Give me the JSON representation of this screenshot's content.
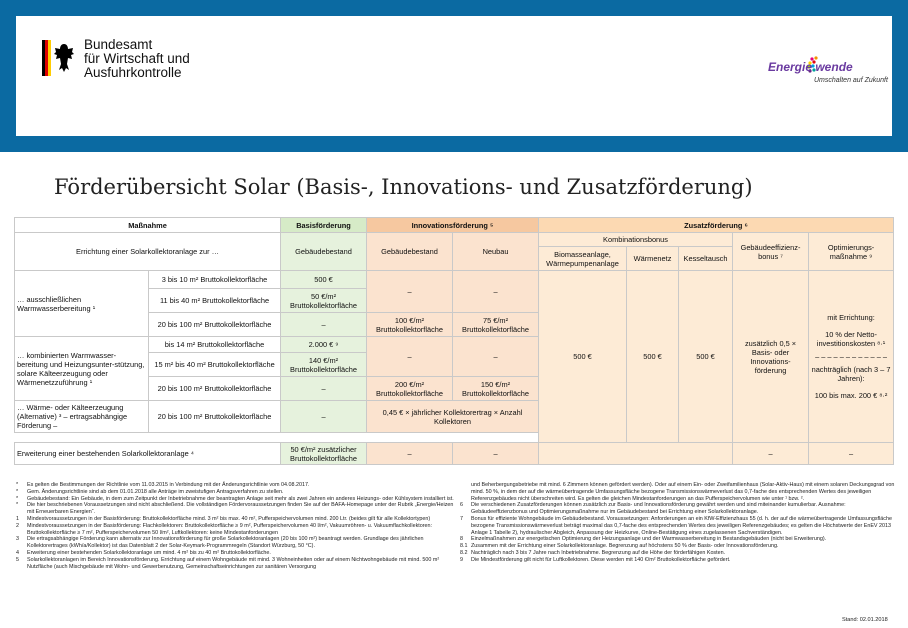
{
  "header": {
    "ministry": [
      "Bundesamt",
      "für Wirtschaft und",
      "Ausfuhrkontrolle"
    ],
    "logo_title": "Energie wende",
    "logo_sub": "Umschalten auf Zukunft"
  },
  "title": "Förderübersicht Solar (Basis-, Innovations- und Zusatzförderung)",
  "table": {
    "h_massnahme": "Maßnahme",
    "h_basis": "Basisförderung",
    "h_innov": "Innovationsförderung ⁵",
    "h_zusatz": "Zusatzförderung ⁶",
    "h_errichtung": "Errichtung einer Solarkollektoranlage zur …",
    "h_gebaeude_b": "Gebäudebestand",
    "h_gebaeude_i": "Gebäudebestand",
    "h_neubau": "Neubau",
    "h_kombi": "Kombinationsbonus",
    "h_effizienz": "Gebäudeeffizienz-bonus ⁷",
    "h_optim": "Optimierungs-maßnahme ⁹",
    "h_biomasse": "Biomasseanlage, Wärmepumpenanlage",
    "h_waermenetz": "Wärmenetz",
    "h_kessel": "Kesseltausch",
    "g1": "… ausschließlichen Warmwasserbereitung ¹",
    "g1r1": "3 bis 10 m² Bruttokollektorfläche",
    "g1r1b": "500 €",
    "g1r2": "11 bis 40 m² Bruttokollektorfläche",
    "g1r2b": "50 €/m² Bruttokollektorfläche",
    "g1r3": "20 bis 100 m² Bruttokollektorfläche",
    "g1r3b": "–",
    "g1i12": "–",
    "g1n12": "–",
    "g1r3i": "100 €/m² Bruttokollektorfläche",
    "g1r3n": "75 €/m² Bruttokollektorfläche",
    "g2": "… kombinierten Warmwasser-bereitung und Heizungsunter-stützung, solare Kälteerzeugung oder Wärmenetzzuführung ¹",
    "g2r1": "bis 14 m² Bruttokollektorfläche",
    "g2r1b": "2.000 € ⁹",
    "g2r2": "15 m² bis 40 m² Bruttokollektorfläche",
    "g2r2b": "140 €/m² Bruttokollektorfläche",
    "g2r3": "20 bis 100 m² Bruttokollektorfläche",
    "g2r3b": "–",
    "g2i12": "–",
    "g2n12": "–",
    "g2r3i": "200 €/m² Bruttokollektorfläche",
    "g2r3n": "150 €/m² Bruttokollektorfläche",
    "g3": "… Wärme- oder Kälteerzeugung (Alternative) ³ – ertragsabhängige Förderung –",
    "g3r1": "20 bis 100 m² Bruttokollektorfläche",
    "g3b": "–",
    "g3i": "0,45 € × jährlicher Kollektorertrag × Anzahl Kollektoren",
    "kombi1": "500 €",
    "kombi2": "500 €",
    "kombi3": "500 €",
    "effizienz": "zusätzlich 0,5 × Basis- oder Innovations-förderung",
    "optim_a": "mit Errichtung:",
    "optim_b": "10 % der Netto-investitionskosten ⁸·¹",
    "optim_sep": "– – – – – – – – – – – –",
    "optim_c": "nachträglich (nach 3 – 7 Jahren):",
    "optim_d": "100 bis max. 200 € ⁸·²",
    "erw": "Erweiterung einer bestehenden Solarkollektoranlage ⁴",
    "erw_b": "50 €/m² zusätzlicher Bruttokollektorfläche",
    "erw_i": "–",
    "erw_n": "–",
    "erw_e": "–",
    "erw_o": "–"
  },
  "notes_left": [
    {
      "k": "*",
      "t": "Es gelten die Bestimmungen der Richtlinie vom 11.03.2015 in Verbindung mit der Änderungsrichtlinie vom 04.08.2017."
    },
    {
      "k": "*",
      "t": "Gem. Änderungsrichtlinie sind ab dem 01.01.2018 alle Anträge im zweistufigen Antragsverfahren zu stellen."
    },
    {
      "k": "*",
      "t": "Gebäudebestand: Ein Gebäude, in dem zum Zeitpunkt der Inbetriebnahme der beantragten Anlage seit mehr als zwei Jahren ein anderes Heizungs- oder Kühlsystem installiert ist."
    },
    {
      "k": "*",
      "t": "Die hier beschriebenen Voraussetzungen sind nicht abschließend. Die vollständigen Fördervoraussetzungen finden Sie auf der BAFA-Homepage unter der Rubrik „Energie/Heizen mit Erneuerbaren Energien“."
    },
    {
      "k": "1",
      "t": "Mindestvoraussetzungen in der Basisförderung: Bruttokollektorfläche mind. 3 m² bis max. 40 m², Pufferspeichervolumen mind. 200 Ltr. (beides gilt für alle Kollektortypen)"
    },
    {
      "k": "2",
      "t": "Mindestvoraussetzungen in der Basisförderung: Flachkollektoren: Bruttokollektorfläche ≥ 9 m², Pufferspeichervolumen 40 l/m², Vakuumröhren- u. Vakuumflachkollektoren: Bruttokollektorfläche ≥ 7 m², Pufferspeichervolumen 50 l/m², Luftkollektoren: keine Mindestanforderungen"
    },
    {
      "k": "3",
      "t": "Die ertragsabhängige Förderung kann alternativ zur Innovationsförderung für große Solarkollektoranlagen (20 bis 100 m²) beantragt werden. Grundlage des jährlichen Kollektorertrages (kWh/a/Kollektor) ist das Datenblatt 2 der Solar-Keymark-Programmregeln (Standort Würzburg, 50 °C)."
    },
    {
      "k": "4",
      "t": "Erweiterung einer bestehenden Solarkollektoranlage um mind. 4 m² bis zu 40 m² Bruttokollektorfläche."
    },
    {
      "k": "5",
      "t": "Solarkollektoranlagen im Bereich Innovationsförderung. Errichtung auf einem Wohngebäude mit mind. 3 Wohneinheiten oder auf einem Nichtwohngebäude mit mind. 500 m² Nutzfläche (auch Mischgebäude mit Wohn- und Gewerbenutzung, Gemeinschaftseinrichtungen zur sanitären Versorgung"
    }
  ],
  "notes_right": [
    {
      "k": "",
      "t": "und Beherbergungsbetriebe mit mind. 6 Zimmern können gefördert werden). Oder auf einem Ein- oder Zweifamilienhaus (Solar-Aktiv-Haus) mit einem solaren Deckungsgrad von mind. 50 %, in dem der auf die wärmeübertragende Umfassungsfläche bezogene Transmissionswärmeverlust das 0,7-fache des entsprechenden Wertes des jeweiligen Referenzgebäudes nicht überschreiten wird. Es gelten die gleichen Mindestanforderungen an das Pufferspeichervolumen wie unter ¹ bzw. ²."
    },
    {
      "k": "6",
      "t": "Die verschiedenen Zusatzförderungen können zusätzlich zur Basis- und Innovationsförderung gewährt werden und sind miteinander kumulierbar. Ausnahme: Gebäudeeffizienzbonus und Optimierungsmaßnahme nur im Gebäudebestand bei Errichtung einer Solarkollektoranlage."
    },
    {
      "k": "7",
      "t": "Bonus für effiziente Wohngebäude im Gebäudebestand. Voraussetzungen: Anforderungen an ein KfW-Effizienzhaus 55 (d. h. der auf die wärmeübertragende Umfassungsfläche bezogene Transmissionswärmeverlust beträgt maximal das 0,7-fache des entsprechenden Wertes des jeweiligen Referenzgebäudes; es gelten die Höchstwerte der EnEV 2013 Anlage 1 Tabelle 2), hydraulischer Abgleich, Anpassung der Heizkurve, Online-Bestätigung eines zugelassenen Sachverständigen."
    },
    {
      "k": "8",
      "t": "Einzelmaßnahmen zur energetischen Optimierung der Heizungsanlage und der Warmwasserbereitung in Bestandsgebäuden (nicht bei Erweiterung)."
    },
    {
      "k": "8.1",
      "t": "Zusammen mit der Errichtung einer Solarkollektoranlage. Begrenzung auf höchstens 50 % der Basis- oder Innovationsförderung."
    },
    {
      "k": "8.2",
      "t": "Nachträglich nach 3 bis 7 Jahre nach Inbetriebnahme. Begrenzung auf die Höhe der förderfähigen Kosten."
    },
    {
      "k": "9",
      "t": "Die Mindestförderung gilt nicht für Luftkollektoren. Diese werden mit 140 €/m² Bruttokollektorfläche gefördert."
    }
  ],
  "stand": "Stand: 02.01.2018",
  "colors": {
    "frame": "#0b6aa2",
    "basis": "#d6ebc7",
    "innovation": "#f6c8a0",
    "zusatz": "#fcd9b2"
  }
}
